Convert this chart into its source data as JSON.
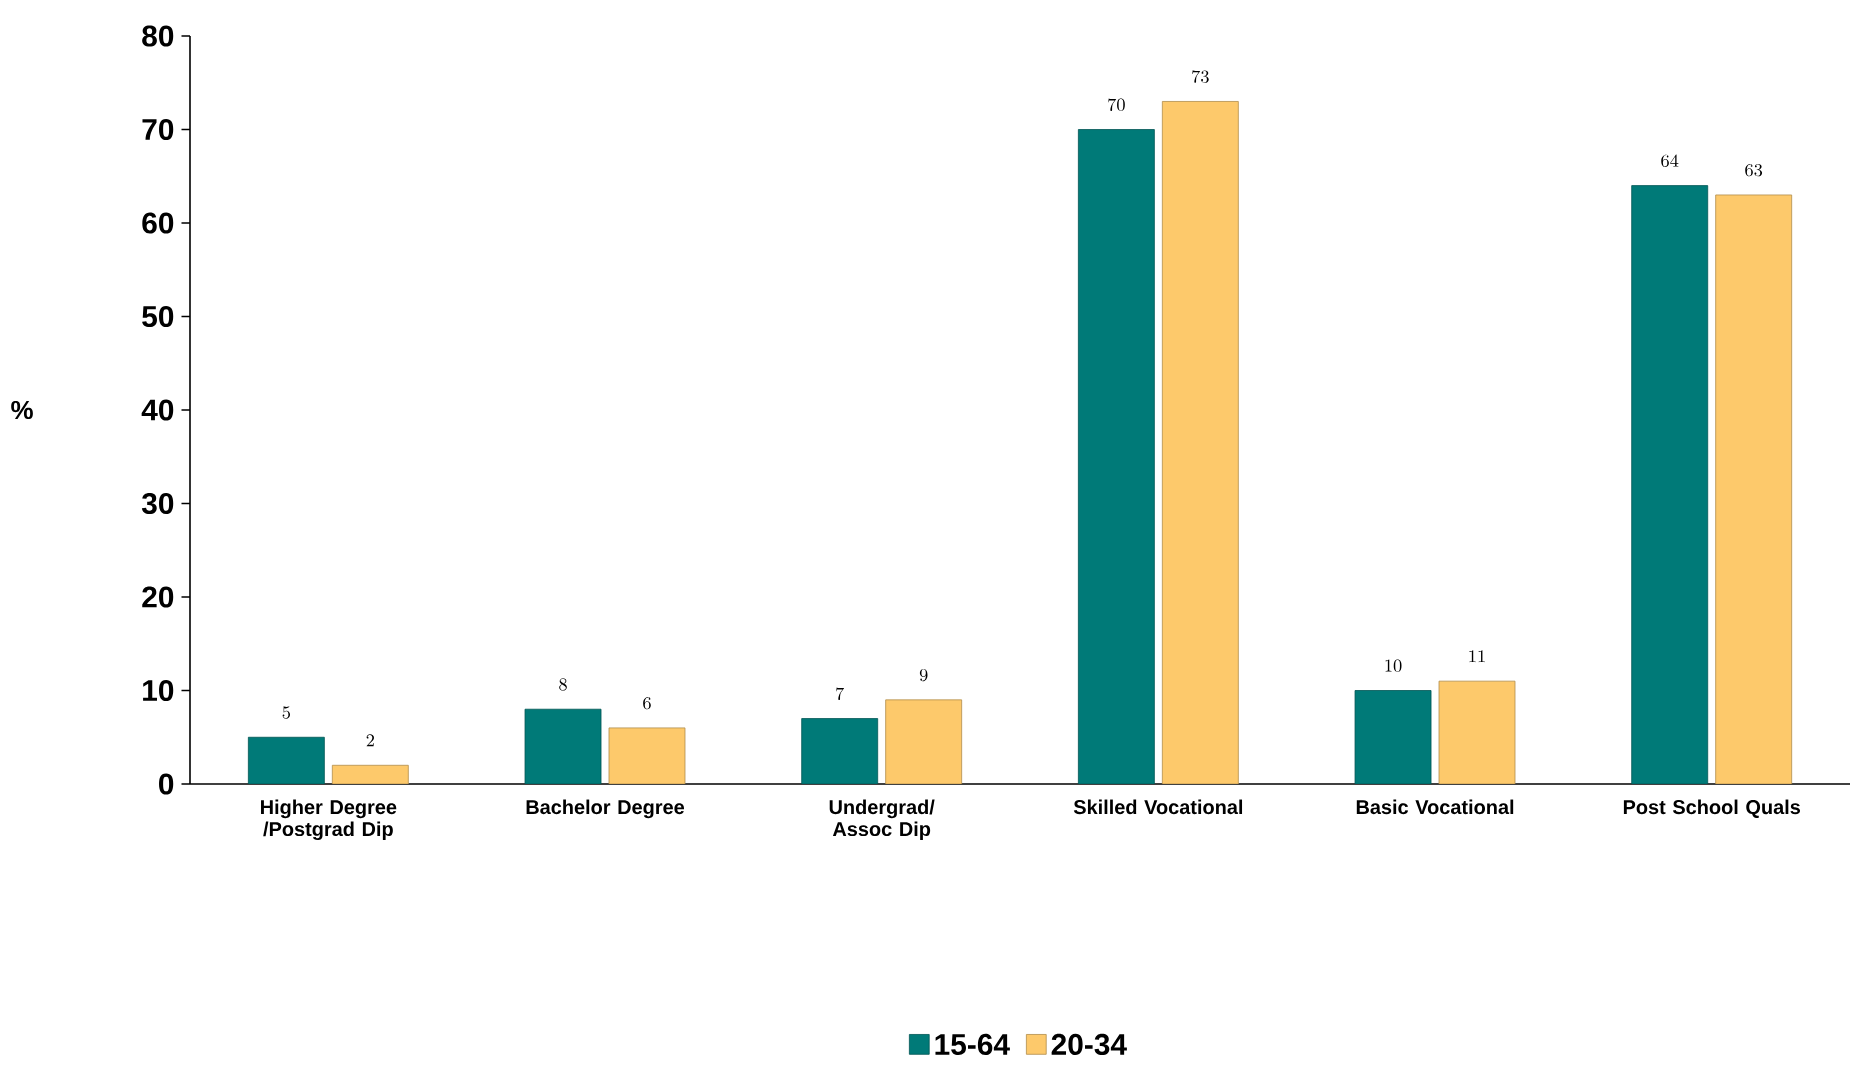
{
  "chart_data": {
    "type": "bar",
    "ylabel": "%",
    "categories": [
      "Higher Degree /Postgrad Dip",
      "Bachelor Degree",
      "Undergrad/ Assoc Dip",
      "Skilled Vocational",
      "Basic Vocational",
      "Post School Quals"
    ],
    "series": [
      {
        "name": "15-64",
        "color": "#007a78",
        "values": [
          5,
          8,
          7,
          70,
          10,
          64
        ]
      },
      {
        "name": "20-34",
        "color": "#fdc96b",
        "values": [
          2,
          6,
          9,
          73,
          11,
          63
        ]
      }
    ],
    "ylim": [
      0,
      80
    ],
    "yticks": [
      0,
      10,
      20,
      30,
      40,
      50,
      60,
      70,
      80
    ],
    "data_labels": true,
    "legend": "bottom",
    "grid": false
  }
}
